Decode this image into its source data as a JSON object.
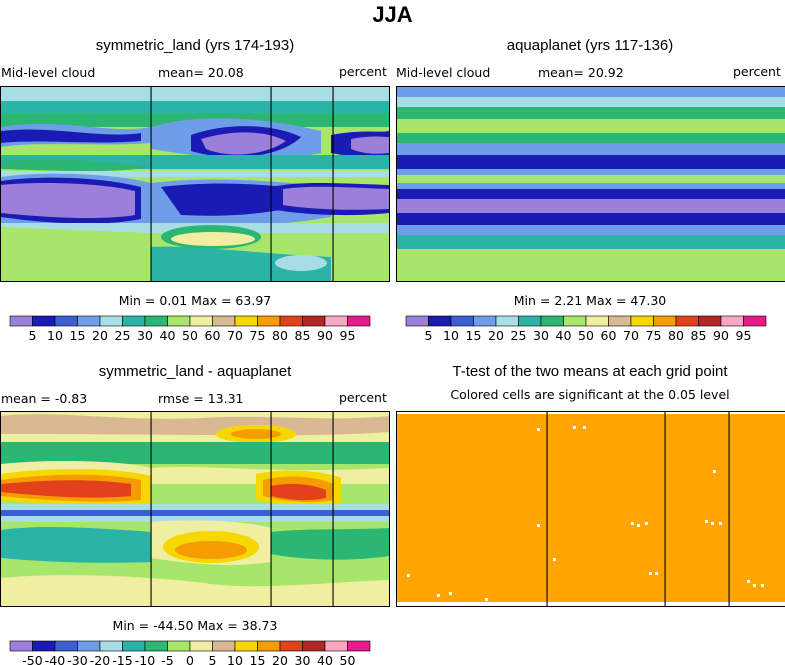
{
  "main_title": "JJA",
  "colors": {
    "bar_fill": [
      "#9b7fd9",
      "#1a1ab4",
      "#3b5fcf",
      "#6f9ee8",
      "#a8dde6",
      "#2bb3a8",
      "#2bb673",
      "#a8e66b",
      "#f0eea0",
      "#d9b991",
      "#f6d700",
      "#f59c00",
      "#e2411b",
      "#b32626",
      "#f7a6c3",
      "#e81a8c"
    ],
    "diff_fill": [
      "#9b7fd9",
      "#1a1ab4",
      "#3b5fcf",
      "#6f9ee8",
      "#a8dde6",
      "#2bb3a8",
      "#2bb673",
      "#a8e66b",
      "#f0eea0",
      "#d9b991",
      "#f6d700",
      "#f59c00",
      "#e2411b",
      "#b32626",
      "#f7a6c3",
      "#e81a8c"
    ],
    "ttest": "#ffa500"
  },
  "panels": {
    "p1": {
      "title": "symmetric_land (yrs 174-193)",
      "left": "Mid-level cloud",
      "middle": "mean=  20.08",
      "right": "percent",
      "minmax": "Min =   0.01  Max =  63.97"
    },
    "p2": {
      "title": "aquaplanet (yrs 117-136)",
      "left": "Mid-level cloud",
      "middle": "mean=  20.92",
      "right": "percent",
      "minmax": "Min =   2.21  Max =  47.30"
    },
    "p3": {
      "title": "symmetric_land - aquaplanet",
      "left": "mean =  -0.83",
      "middle": "rmse =  13.31",
      "right": "percent",
      "minmax": "Min = -44.50  Max =  38.73"
    },
    "p4": {
      "title": "T-test of the two means at each grid point",
      "subtitle": "Colored cells are significant at the 0.05 level"
    }
  },
  "chart_data": [
    {
      "type": "heatmap",
      "name": "symmetric_land",
      "field": "Mid-level cloud",
      "units": "percent",
      "mean": 20.08,
      "min": 0.01,
      "max": 63.97,
      "colorbar_levels": [
        "5",
        "10",
        "15",
        "20",
        "25",
        "30",
        "40",
        "50",
        "60",
        "70",
        "75",
        "80",
        "85",
        "90",
        "95"
      ]
    },
    {
      "type": "heatmap",
      "name": "aquaplanet",
      "field": "Mid-level cloud",
      "units": "percent",
      "mean": 20.92,
      "min": 2.21,
      "max": 47.3,
      "colorbar_levels": [
        "5",
        "10",
        "15",
        "20",
        "25",
        "30",
        "40",
        "50",
        "60",
        "70",
        "75",
        "80",
        "85",
        "90",
        "95"
      ]
    },
    {
      "type": "heatmap",
      "name": "symmetric_land - aquaplanet",
      "units": "percent",
      "mean": -0.83,
      "rmse": 13.31,
      "min": -44.5,
      "max": 38.73,
      "colorbar_levels": [
        "-50",
        "-40",
        "-30",
        "-20",
        "-15",
        "-10",
        "-5",
        "0",
        "5",
        "10",
        "15",
        "20",
        "30",
        "40",
        "50"
      ]
    },
    {
      "type": "heatmap",
      "name": "T-test",
      "description": "Colored cells are significant at the 0.05 level"
    }
  ]
}
